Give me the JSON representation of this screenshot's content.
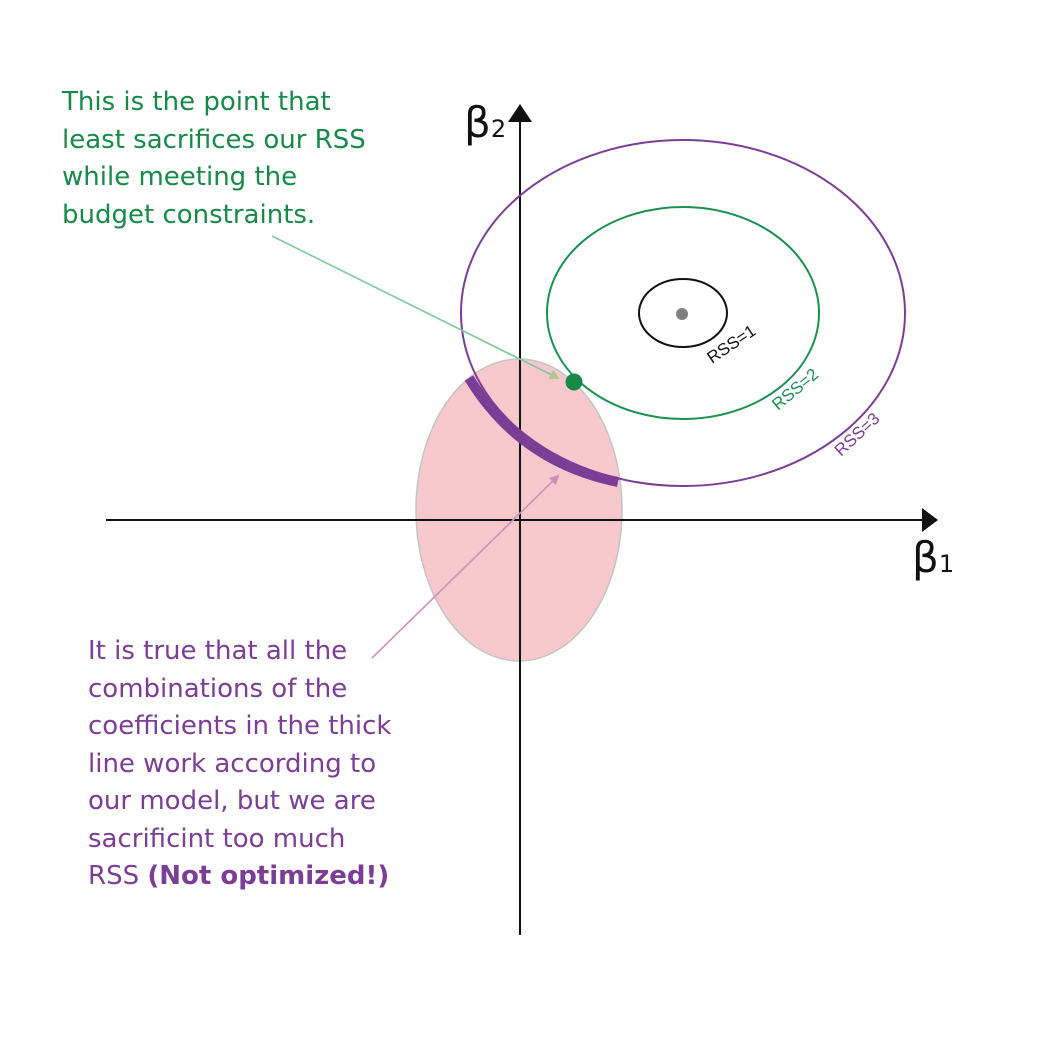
{
  "axes": {
    "x_symbol": "β",
    "x_subscript": "1",
    "y_symbol": "β",
    "y_subscript": "2"
  },
  "contours": [
    {
      "label": "RSS=1",
      "color": "#111111"
    },
    {
      "label": "RSS=2",
      "color": "#1a9150"
    },
    {
      "label": "RSS=3",
      "color": "#7b3d96"
    }
  ],
  "colors": {
    "constraint_fill": "#f7c9cc",
    "constraint_stroke": "#c4c4c4",
    "thick_line": "#7b3d96",
    "optimal_point": "#178a48",
    "center_point": "#808080",
    "arrow_green": "#7fc99a",
    "arrow_purple": "#cf8fbd"
  },
  "notes": {
    "optimal": {
      "lines": [
        "This is the point that",
        "least sacrifices our RSS",
        "while meeting the",
        "budget constraints."
      ]
    },
    "not_optimal": {
      "lines": [
        "It is true that all the",
        "combinations of the",
        "coefficients in the thick",
        "line work according to",
        "our model, but we are",
        "sacrificint too much"
      ],
      "last_line_prefix": "RSS ",
      "last_line_emphasis": "(Not optimized!)"
    }
  }
}
